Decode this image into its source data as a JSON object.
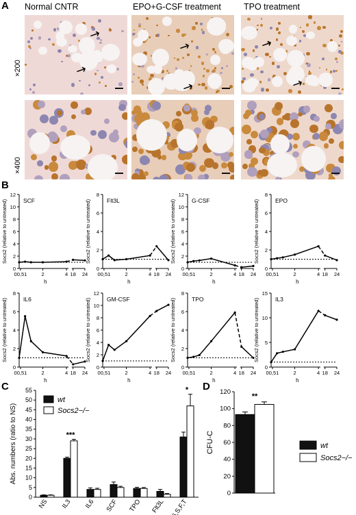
{
  "panel_a": {
    "letter": "A",
    "col_titles": [
      "Normal CNTR",
      "EPO+G-CSF treatment",
      "TPO treatment"
    ],
    "mag_labels": [
      "×200",
      "×400"
    ]
  },
  "panel_b": {
    "letter": "B",
    "ylabel": "Socs2 (relative to untreated)",
    "xlabel": "h",
    "xticks": [
      "0",
      "0,5",
      "1",
      "2",
      "4",
      "18",
      "24"
    ]
  },
  "panel_c": {
    "letter": "C"
  },
  "panel_d": {
    "letter": "D"
  },
  "chart_data": [
    {
      "type": "line",
      "title": "SCF",
      "x": [
        "0",
        "0.5",
        "1",
        "2",
        "4",
        "18",
        "24"
      ],
      "values": [
        1.0,
        1.1,
        1.0,
        1.0,
        1.1,
        1.4,
        1.3
      ],
      "ylim": [
        0,
        12
      ],
      "yticks": [
        0,
        2,
        4,
        6,
        8,
        10,
        12
      ],
      "baseline": 1
    },
    {
      "type": "line",
      "title": "Flt3L",
      "x": [
        "0",
        "0.5",
        "1",
        "2",
        "4",
        "18",
        "24"
      ],
      "values": [
        1.0,
        1.4,
        0.9,
        1.0,
        1.4,
        2.4,
        0.9
      ],
      "ylim": [
        0,
        8
      ],
      "yticks": [
        0,
        2,
        4,
        6,
        8
      ],
      "baseline": 1
    },
    {
      "type": "line",
      "title": "G-CSF",
      "x": [
        "0",
        "0.5",
        "1",
        "2",
        "4",
        "18",
        "24"
      ],
      "values": [
        1.0,
        1.2,
        1.3,
        1.6,
        0.5,
        0.2,
        0.4
      ],
      "ylim": [
        0,
        12
      ],
      "yticks": [
        0,
        2,
        4,
        6,
        8,
        10,
        12
      ],
      "baseline": 1
    },
    {
      "type": "line",
      "title": "EPO",
      "x": [
        "0",
        "0.5",
        "1",
        "2",
        "4",
        "18",
        "24"
      ],
      "values": [
        1.0,
        1.1,
        1.2,
        1.5,
        2.4,
        1.4,
        0.9
      ],
      "ylim": [
        0,
        8
      ],
      "yticks": [
        0,
        2,
        4,
        6,
        8
      ],
      "baseline": 1
    },
    {
      "type": "line",
      "title": "IL6",
      "x": [
        "0",
        "0.5",
        "1",
        "2",
        "4",
        "18",
        "24"
      ],
      "values": [
        1.0,
        5.5,
        2.8,
        1.6,
        1.2,
        0.3,
        0.6
      ],
      "ylim": [
        0,
        8
      ],
      "yticks": [
        0,
        2,
        4,
        6,
        8
      ],
      "baseline": 1
    },
    {
      "type": "line",
      "title": "GM-CSF",
      "x": [
        "0",
        "0.5",
        "1",
        "2",
        "4",
        "18",
        "24"
      ],
      "values": [
        1.0,
        3.6,
        2.8,
        4.2,
        8.3,
        9.1,
        10.1
      ],
      "ylim": [
        0,
        12
      ],
      "yticks": [
        0,
        2,
        4,
        6,
        8,
        10,
        12
      ],
      "baseline": 1
    },
    {
      "type": "line",
      "title": "TPO",
      "x": [
        "0",
        "0.5",
        "1",
        "2",
        "4",
        "18",
        "24"
      ],
      "values": [
        1.0,
        1.1,
        1.3,
        2.8,
        5.9,
        2.2,
        1.0
      ],
      "ylim": [
        0,
        8
      ],
      "yticks": [
        0,
        2,
        4,
        6,
        8
      ],
      "baseline": 1
    },
    {
      "type": "line",
      "title": "IL3",
      "x": [
        "0",
        "0.5",
        "1",
        "2",
        "4",
        "18",
        "24"
      ],
      "values": [
        1.0,
        2.8,
        3.1,
        3.6,
        11.4,
        10.5,
        9.6
      ],
      "ylim": [
        0,
        15
      ],
      "yticks": [
        0,
        5,
        10,
        15
      ],
      "baseline": 1
    },
    {
      "type": "bar",
      "ylabel": "Abs. numbers (ratio to NS)",
      "ylim": [
        0,
        55
      ],
      "yticks": [
        0,
        5,
        10,
        15,
        20,
        25,
        30,
        35,
        40,
        45,
        50,
        55
      ],
      "categories": [
        "NS",
        "IL3",
        "IL6",
        "SCF",
        "TPO",
        "Flt3L",
        "3,6,S,F,T"
      ],
      "series": [
        {
          "name": "wt",
          "values": [
            1.0,
            20.0,
            4.0,
            6.5,
            4.5,
            3.0,
            31.0
          ],
          "errors": [
            0.2,
            0.6,
            0.8,
            1.3,
            0.6,
            1.0,
            2.5
          ]
        },
        {
          "name": "Socs2−/−",
          "values": [
            1.0,
            29.0,
            4.0,
            5.0,
            4.5,
            1.5,
            47.0
          ],
          "errors": [
            0.2,
            0.8,
            0.6,
            0.6,
            0.5,
            0.4,
            6.0
          ]
        }
      ],
      "significance": [
        {
          "category": "IL3",
          "label": "***"
        },
        {
          "category": "3,6,S,F,T",
          "label": "*"
        }
      ],
      "legend": "top-left"
    },
    {
      "type": "bar",
      "ylabel": "CFU-C",
      "ylim": [
        0,
        120
      ],
      "yticks": [
        0,
        20,
        40,
        60,
        80,
        100,
        120
      ],
      "series": [
        {
          "name": "wt",
          "values": [
            93
          ],
          "errors": [
            3
          ]
        },
        {
          "name": "Socs2−/−",
          "values": [
            105
          ],
          "errors": [
            3
          ]
        }
      ],
      "significance": [
        {
          "label": "**"
        }
      ],
      "legend": "right"
    }
  ]
}
